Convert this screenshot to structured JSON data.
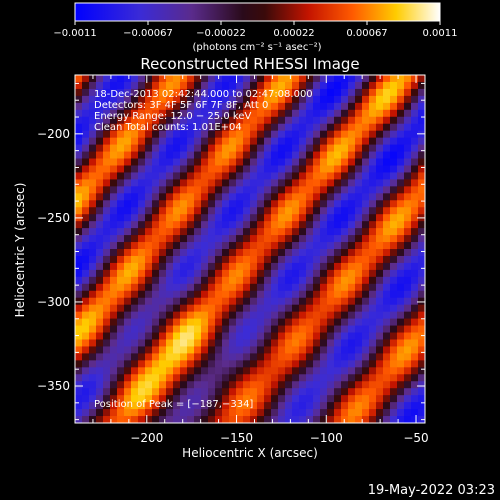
{
  "chart_data": {
    "type": "heatmap",
    "title": "Reconstructed RHESSI Image",
    "xlabel": "Heliocentric X (arcsec)",
    "ylabel": "Heliocentric Y (arcsec)",
    "xlim": [
      -240,
      -45
    ],
    "ylim": [
      -372,
      -165
    ],
    "x_ticks": [
      -200,
      -150,
      -100,
      -50
    ],
    "y_ticks": [
      -200,
      -250,
      -300,
      -350
    ],
    "x_tick_labels": [
      "−200",
      "−150",
      "−100",
      "−50"
    ],
    "y_tick_labels": [
      "−200",
      "−250",
      "−300",
      "−350"
    ],
    "colorbar": {
      "range": [
        -0.0011,
        0.0011
      ],
      "tick_labels": [
        "−0.0011",
        "−0.00067",
        "−0.00022",
        "0.00022",
        "0.00067",
        "0.0011"
      ],
      "units_label": "(photons cm⁻² s⁻¹ asec⁻²)",
      "colormap": "blue-purple-red-orange-yellow-white"
    },
    "annotations": [
      "18-Dec-2013 02:42:44.000 to 02:47:08.000",
      "Detectors: 3F 4F 5F 6F 7F 8F, Att 0",
      "Energy Range: 12.0 − 25.0 keV",
      "Clean    Total counts: 1.01E+04"
    ],
    "peak_label": "Position of Peak = [−187,−334]",
    "peak_position": [
      -187,
      -334
    ],
    "pattern": {
      "description_free_params": true,
      "stripe_direction": [
        1,
        1.3
      ],
      "stripe_period_arcsec": 64,
      "value_min": -0.0011,
      "value_max": 0.0011
    }
  },
  "footer": {
    "timestamp": "19-May-2022 03:23"
  }
}
